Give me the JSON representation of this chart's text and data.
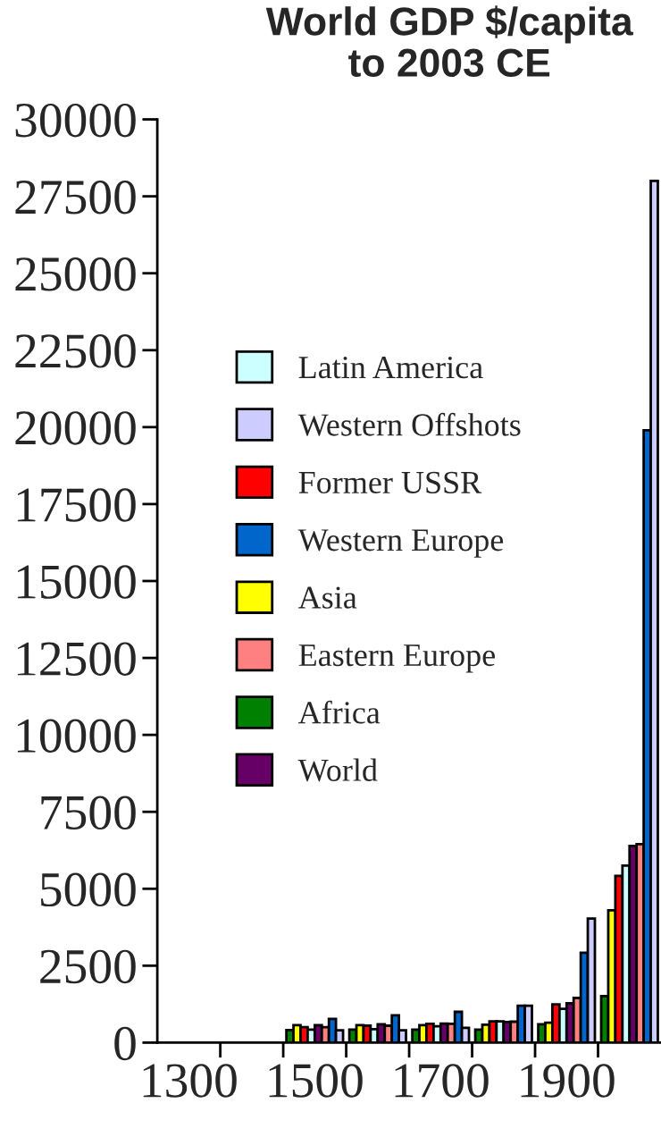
{
  "chart_data": {
    "type": "bar",
    "title": "World GDP $/capita\nto 2003 CE",
    "categories": [
      "1300",
      null,
      "1500",
      null,
      "1700",
      null,
      "1900",
      null
    ],
    "series": [
      {
        "name": "Africa",
        "color": "#008000",
        "values": [
          null,
          null,
          410,
          420,
          420,
          420,
          600,
          1510
        ]
      },
      {
        "name": "Asia",
        "color": "#ffff00",
        "values": [
          null,
          null,
          570,
          570,
          570,
          580,
          650,
          4300
        ]
      },
      {
        "name": "Former USSR",
        "color": "#ff0000",
        "values": [
          null,
          null,
          500,
          550,
          610,
          690,
          1240,
          5420
        ]
      },
      {
        "name": "Latin America",
        "color": "#ccffff",
        "values": [
          null,
          null,
          420,
          440,
          530,
          690,
          1100,
          5750
        ]
      },
      {
        "name": "World",
        "color": "#660066",
        "values": [
          null,
          null,
          570,
          600,
          620,
          670,
          1280,
          6390
        ]
      },
      {
        "name": "Eastern Europe",
        "color": "#ff8080",
        "values": [
          null,
          null,
          500,
          550,
          610,
          680,
          1450,
          6450
        ]
      },
      {
        "name": "Western Europe",
        "color": "#0066cc",
        "values": [
          null,
          null,
          770,
          890,
          1000,
          1200,
          2920,
          19900
        ]
      },
      {
        "name": "Western Offshots",
        "color": "#ccccff",
        "values": [
          null,
          null,
          400,
          400,
          480,
          1200,
          4030,
          28000
        ]
      }
    ],
    "ylim": [
      0,
      30000
    ],
    "yticks": [
      0,
      2500,
      5000,
      7500,
      10000,
      12500,
      15000,
      17500,
      20000,
      22500,
      25000,
      27500,
      30000
    ],
    "grid": false,
    "legend": "top left"
  }
}
